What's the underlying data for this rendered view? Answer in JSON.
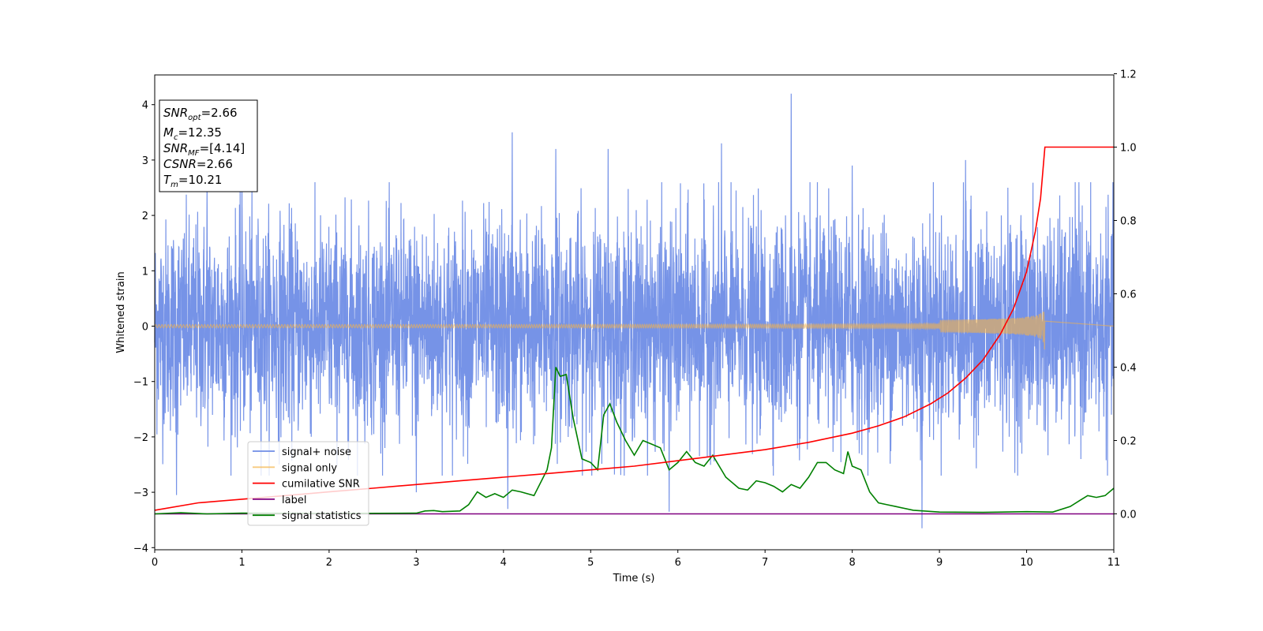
{
  "chart_data": {
    "type": "line",
    "xlabel": "Time (s)",
    "ylabel": "Whitened strain",
    "xlim": [
      0,
      11
    ],
    "ylim_left": [
      -4,
      4.5
    ],
    "ylim_right": [
      -0.1,
      1.2
    ],
    "x_ticks": [
      "0",
      "1",
      "2",
      "3",
      "4",
      "5",
      "6",
      "7",
      "8",
      "9",
      "10",
      "11"
    ],
    "y_ticks_left": [
      "4",
      "3",
      "2",
      "1",
      "0",
      "−1",
      "−2",
      "−3",
      "−4"
    ],
    "y_ticks_right": [
      "1.2",
      "1.0",
      "0.8",
      "0.6",
      "0.4",
      "0.2",
      "0.0"
    ],
    "grid": false,
    "legend_position": "lower-left",
    "legend": [
      {
        "label": "signal+ noise",
        "color": "#6f8de6"
      },
      {
        "label": "signal only",
        "color": "#f5b349"
      },
      {
        "label": "cumilative SNR",
        "color": "#ff0000"
      },
      {
        "label": "label",
        "color": "#800080"
      },
      {
        "label": "signal statistics",
        "color": "#008000"
      }
    ],
    "info_box": [
      {
        "base": "SNR",
        "sub": "opt",
        "rest": "=2.66"
      },
      {
        "base": "M",
        "sub": "c",
        "rest": "=12.35"
      },
      {
        "base": "SNR",
        "sub": "MF",
        "rest": "=[4.14]"
      },
      {
        "base": "CSNR",
        "sub": "",
        "rest": "=2.66"
      },
      {
        "base": "T",
        "sub": "m",
        "rest": "=10.21"
      }
    ],
    "series": [
      {
        "name": "signal+ noise",
        "axis": "left",
        "description": "whitened strain noise, approx. +/-1.5 std with spikes up to 4.2 and down to -3.6",
        "spikes": [
          [
            0.6,
            2.6
          ],
          [
            1.0,
            3.2
          ],
          [
            4.1,
            3.5
          ],
          [
            4.6,
            3.2
          ],
          [
            5.2,
            3.2
          ],
          [
            6.5,
            3.3
          ],
          [
            7.3,
            4.2
          ],
          [
            8.0,
            2.9
          ],
          [
            8.8,
            -3.65
          ],
          [
            9.3,
            3.0
          ],
          [
            4.05,
            -3.3
          ],
          [
            5.9,
            -3.35
          ],
          [
            0.25,
            -3.05
          ],
          [
            3.0,
            -3.0
          ],
          [
            10.6,
            2.6
          ]
        ]
      },
      {
        "name": "signal only",
        "axis": "left",
        "merger_time": 10.21,
        "peak_amplitude": 0.5
      },
      {
        "name": "cumilative SNR",
        "axis": "right",
        "x": [
          0,
          0.5,
          1,
          1.5,
          2,
          2.5,
          3,
          3.5,
          4,
          4.5,
          5,
          5.5,
          6,
          6.5,
          7,
          7.5,
          8,
          8.3,
          8.6,
          8.9,
          9.1,
          9.3,
          9.5,
          9.7,
          9.85,
          10.0,
          10.1,
          10.16,
          10.21,
          11
        ],
        "values": [
          0.01,
          0.03,
          0.04,
          0.05,
          0.06,
          0.07,
          0.08,
          0.09,
          0.1,
          0.11,
          0.12,
          0.13,
          0.145,
          0.16,
          0.175,
          0.195,
          0.22,
          0.24,
          0.265,
          0.3,
          0.33,
          0.37,
          0.42,
          0.49,
          0.56,
          0.66,
          0.77,
          0.86,
          1.0,
          1.0
        ]
      },
      {
        "name": "label",
        "axis": "right",
        "x": [
          0,
          11
        ],
        "values": [
          0.0,
          0.0
        ]
      },
      {
        "name": "signal statistics",
        "axis": "right",
        "x": [
          0,
          0.3,
          0.6,
          1.0,
          2.0,
          3.0,
          3.1,
          3.2,
          3.3,
          3.5,
          3.6,
          3.7,
          3.8,
          3.9,
          4.0,
          4.1,
          4.2,
          4.35,
          4.5,
          4.55,
          4.6,
          4.65,
          4.72,
          4.8,
          4.9,
          5.0,
          5.08,
          5.15,
          5.22,
          5.3,
          5.4,
          5.5,
          5.6,
          5.7,
          5.8,
          5.9,
          6.0,
          6.1,
          6.2,
          6.3,
          6.4,
          6.55,
          6.7,
          6.8,
          6.9,
          7.0,
          7.1,
          7.2,
          7.3,
          7.4,
          7.5,
          7.6,
          7.7,
          7.8,
          7.9,
          7.95,
          8.0,
          8.1,
          8.2,
          8.3,
          8.4,
          8.5,
          8.7,
          9.0,
          9.5,
          10.0,
          10.3,
          10.5,
          10.6,
          10.7,
          10.8,
          10.9,
          11.0
        ],
        "values": [
          0.0,
          0.003,
          0.0,
          0.002,
          0.001,
          0.002,
          0.008,
          0.009,
          0.006,
          0.008,
          0.025,
          0.06,
          0.045,
          0.055,
          0.045,
          0.065,
          0.06,
          0.05,
          0.12,
          0.18,
          0.4,
          0.375,
          0.38,
          0.26,
          0.15,
          0.14,
          0.12,
          0.27,
          0.3,
          0.25,
          0.2,
          0.16,
          0.2,
          0.19,
          0.18,
          0.12,
          0.14,
          0.17,
          0.14,
          0.13,
          0.16,
          0.1,
          0.07,
          0.065,
          0.09,
          0.085,
          0.075,
          0.06,
          0.08,
          0.07,
          0.1,
          0.14,
          0.14,
          0.12,
          0.11,
          0.17,
          0.13,
          0.12,
          0.06,
          0.03,
          0.025,
          0.02,
          0.01,
          0.005,
          0.004,
          0.006,
          0.005,
          0.02,
          0.035,
          0.05,
          0.045,
          0.05,
          0.07
        ]
      }
    ]
  }
}
